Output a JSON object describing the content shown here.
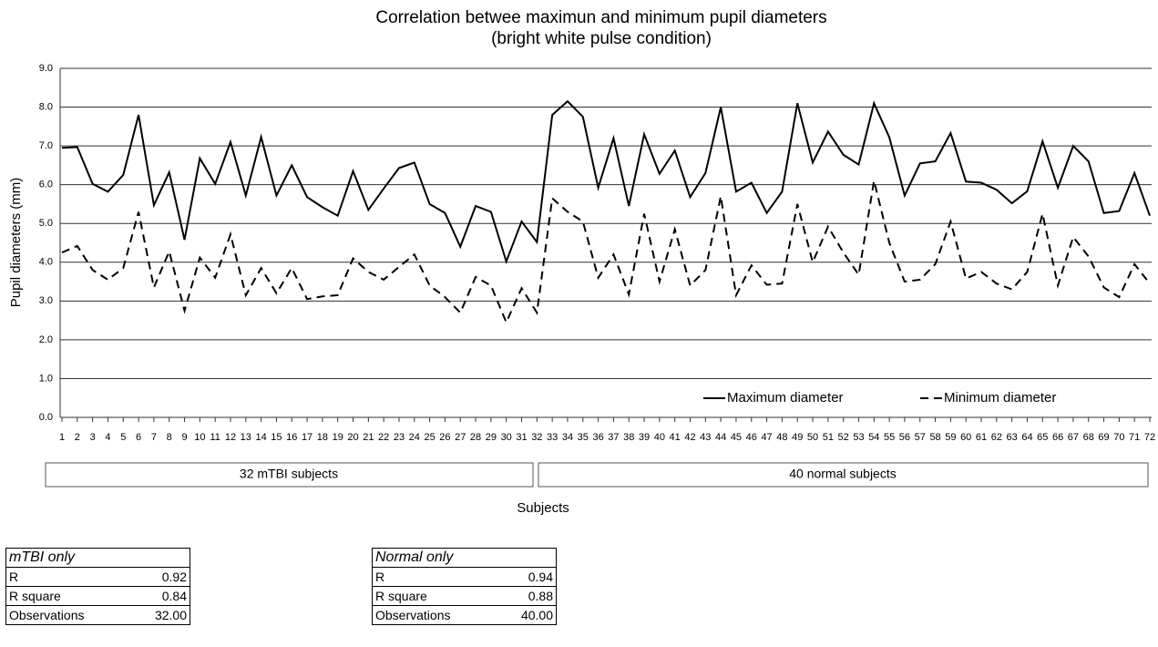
{
  "chart_data": {
    "type": "line",
    "title": "Correlation betwee maximun and minimum pupil diameters",
    "subtitle": "(bright white pulse condition)",
    "y_label": "Pupil diameters (mm)",
    "x_label": "Subjects",
    "annotations": [
      "32 mTBI subjects",
      "40 normal subjects"
    ],
    "categories": [
      "1",
      "2",
      "3",
      "4",
      "5",
      "6",
      "7",
      "8",
      "9",
      "10",
      "11",
      "12",
      "13",
      "14",
      "15",
      "16",
      "17",
      "18",
      "19",
      "20",
      "21",
      "22",
      "23",
      "24",
      "25",
      "26",
      "27",
      "28",
      "29",
      "30",
      "31",
      "32",
      "33",
      "34",
      "35",
      "36",
      "37",
      "38",
      "39",
      "40",
      "41",
      "42",
      "43",
      "44",
      "45",
      "46",
      "47",
      "48",
      "49",
      "50",
      "51",
      "52",
      "53",
      "54",
      "55",
      "56",
      "57",
      "58",
      "59",
      "60",
      "61",
      "62",
      "63",
      "64",
      "65",
      "66",
      "67",
      "68",
      "69",
      "70",
      "71",
      "72"
    ],
    "series": [
      {
        "name": "Maximum diameter",
        "color": "#000000",
        "dash": "solid",
        "values": [
          6.95,
          6.97,
          6.02,
          5.82,
          6.25,
          7.8,
          5.47,
          6.32,
          4.58,
          6.68,
          6.02,
          7.1,
          5.72,
          7.23,
          5.72,
          6.5,
          5.68,
          5.42,
          5.2,
          6.35,
          5.35,
          5.9,
          6.43,
          6.57,
          5.5,
          5.27,
          4.4,
          5.45,
          5.3,
          4.02,
          5.05,
          4.52,
          7.8,
          8.15,
          7.75,
          5.92,
          7.2,
          5.45,
          7.3,
          6.28,
          6.88,
          5.68,
          6.3,
          8.0,
          5.82,
          6.05,
          5.27,
          5.82,
          8.1,
          6.57,
          7.37,
          6.77,
          6.52,
          8.1,
          7.22,
          5.72,
          6.55,
          6.6,
          7.33,
          6.08,
          6.05,
          5.87,
          5.52,
          5.83,
          7.12,
          5.92,
          7.0,
          6.6,
          5.27,
          5.32,
          6.3,
          5.2
        ]
      },
      {
        "name": "Minimum diameter",
        "color": "#000000",
        "dash": "dashed",
        "values": [
          4.25,
          4.42,
          3.8,
          3.55,
          3.85,
          5.3,
          3.35,
          4.28,
          2.75,
          4.12,
          3.6,
          4.72,
          3.15,
          3.85,
          3.2,
          3.85,
          3.05,
          3.12,
          3.15,
          4.1,
          3.75,
          3.55,
          3.88,
          4.2,
          3.4,
          3.1,
          2.7,
          3.62,
          3.4,
          2.45,
          3.33,
          2.7,
          5.65,
          5.3,
          5.05,
          3.6,
          4.2,
          3.17,
          5.25,
          3.5,
          4.85,
          3.4,
          3.8,
          5.7,
          3.15,
          3.92,
          3.42,
          3.45,
          5.5,
          4.0,
          4.92,
          4.25,
          3.68,
          6.1,
          4.5,
          3.5,
          3.55,
          3.95,
          5.05,
          3.58,
          3.75,
          3.45,
          3.3,
          3.75,
          5.25,
          3.4,
          4.65,
          4.15,
          3.35,
          3.1,
          3.95,
          3.45
        ]
      }
    ],
    "ylim": [
      0,
      9
    ],
    "yticks": [
      {
        "value": 0,
        "label": "0.0"
      },
      {
        "value": 1,
        "label": "1.0"
      },
      {
        "value": 2,
        "label": "2.0"
      },
      {
        "value": 3,
        "label": "3.0"
      },
      {
        "value": 4,
        "label": "4.0"
      },
      {
        "value": 5,
        "label": "5.0"
      },
      {
        "value": 6,
        "label": "6.0"
      },
      {
        "value": 7,
        "label": "7.0"
      },
      {
        "value": 8,
        "label": "8.0"
      },
      {
        "value": 9,
        "label": "9.0"
      }
    ],
    "grid": true,
    "legend": "bottom-right"
  },
  "tables": [
    {
      "title": "mTBI only",
      "rows": [
        [
          "R",
          "0.92"
        ],
        [
          "R square",
          "0.84"
        ],
        [
          "Observations",
          "32.00"
        ]
      ]
    },
    {
      "title": "Normal only",
      "rows": [
        [
          "R",
          "0.94"
        ],
        [
          "R square",
          "0.88"
        ],
        [
          "Observations",
          "40.00"
        ]
      ]
    }
  ]
}
